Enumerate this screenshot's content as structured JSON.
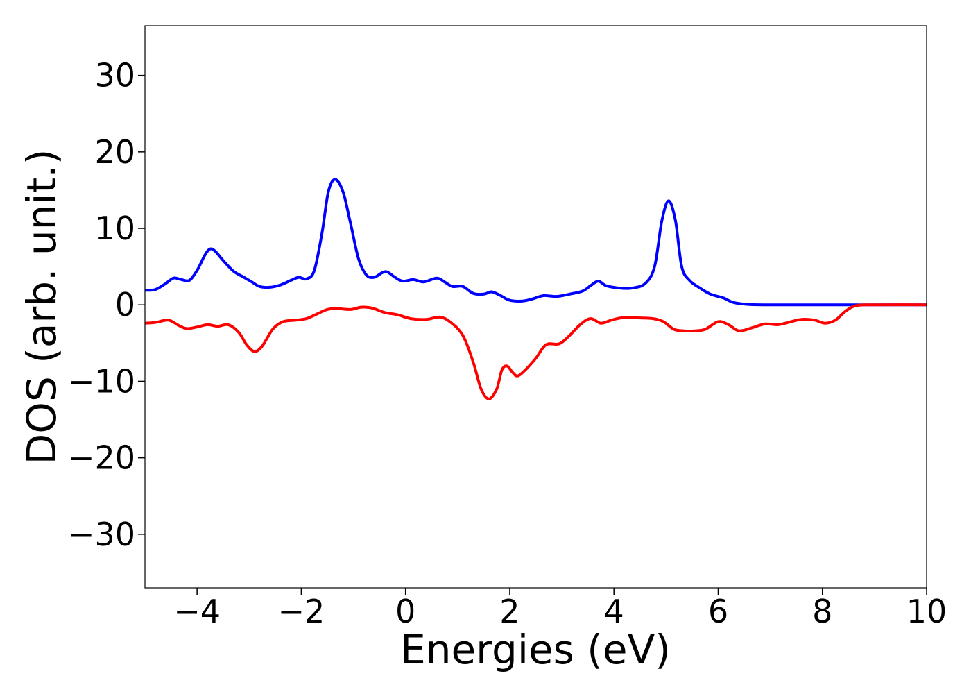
{
  "chart_data": {
    "type": "line",
    "title": "",
    "xlabel": "Energies (eV)",
    "ylabel": "DOS (arb. unit.)",
    "xlim": [
      -5,
      10
    ],
    "ylim": [
      -37,
      36.5
    ],
    "grid": false,
    "legend": "none",
    "xticks": [
      {
        "value": -4,
        "label": "−4"
      },
      {
        "value": -2,
        "label": "−2"
      },
      {
        "value": 0,
        "label": "0"
      },
      {
        "value": 2,
        "label": "2"
      },
      {
        "value": 4,
        "label": "4"
      },
      {
        "value": 6,
        "label": "6"
      },
      {
        "value": 8,
        "label": "8"
      },
      {
        "value": 10,
        "label": "10"
      }
    ],
    "yticks": [
      {
        "value": -30,
        "label": "−30"
      },
      {
        "value": -20,
        "label": "−20"
      },
      {
        "value": -10,
        "label": "−10"
      },
      {
        "value": 0,
        "label": "0"
      },
      {
        "value": 10,
        "label": "10"
      },
      {
        "value": 20,
        "label": "20"
      },
      {
        "value": 30,
        "label": "30"
      }
    ],
    "series": [
      {
        "color": "#0000ff",
        "points": [
          [
            -5.0,
            1.9
          ],
          [
            -4.8,
            2.0
          ],
          [
            -4.6,
            2.8
          ],
          [
            -4.45,
            3.5
          ],
          [
            -4.3,
            3.3
          ],
          [
            -4.15,
            3.2
          ],
          [
            -4.0,
            4.5
          ],
          [
            -3.85,
            6.5
          ],
          [
            -3.75,
            7.3
          ],
          [
            -3.65,
            7.0
          ],
          [
            -3.5,
            5.8
          ],
          [
            -3.3,
            4.4
          ],
          [
            -3.1,
            3.6
          ],
          [
            -2.95,
            3.0
          ],
          [
            -2.8,
            2.4
          ],
          [
            -2.6,
            2.3
          ],
          [
            -2.4,
            2.6
          ],
          [
            -2.2,
            3.2
          ],
          [
            -2.05,
            3.6
          ],
          [
            -1.9,
            3.4
          ],
          [
            -1.75,
            4.5
          ],
          [
            -1.6,
            9.5
          ],
          [
            -1.48,
            14.8
          ],
          [
            -1.35,
            16.4
          ],
          [
            -1.2,
            14.8
          ],
          [
            -1.05,
            10.5
          ],
          [
            -0.9,
            6.0
          ],
          [
            -0.75,
            3.9
          ],
          [
            -0.6,
            3.6
          ],
          [
            -0.45,
            4.2
          ],
          [
            -0.35,
            4.3
          ],
          [
            -0.2,
            3.6
          ],
          [
            -0.05,
            3.1
          ],
          [
            0.15,
            3.3
          ],
          [
            0.35,
            3.0
          ],
          [
            0.6,
            3.5
          ],
          [
            0.75,
            3.0
          ],
          [
            0.9,
            2.4
          ],
          [
            1.1,
            2.4
          ],
          [
            1.3,
            1.5
          ],
          [
            1.5,
            1.4
          ],
          [
            1.65,
            1.7
          ],
          [
            1.8,
            1.3
          ],
          [
            2.0,
            0.6
          ],
          [
            2.25,
            0.5
          ],
          [
            2.45,
            0.8
          ],
          [
            2.65,
            1.2
          ],
          [
            2.9,
            1.1
          ],
          [
            3.15,
            1.4
          ],
          [
            3.4,
            1.8
          ],
          [
            3.55,
            2.5
          ],
          [
            3.7,
            3.1
          ],
          [
            3.85,
            2.5
          ],
          [
            4.1,
            2.2
          ],
          [
            4.35,
            2.2
          ],
          [
            4.6,
            2.8
          ],
          [
            4.78,
            5.0
          ],
          [
            4.92,
            11.0
          ],
          [
            5.05,
            13.6
          ],
          [
            5.18,
            11.0
          ],
          [
            5.3,
            5.0
          ],
          [
            5.45,
            3.2
          ],
          [
            5.65,
            2.2
          ],
          [
            5.85,
            1.4
          ],
          [
            6.1,
            0.9
          ],
          [
            6.3,
            0.3
          ],
          [
            6.6,
            0.05
          ],
          [
            7.0,
            0.0
          ],
          [
            8.0,
            0.0
          ],
          [
            9.0,
            0.0
          ],
          [
            10.0,
            0.0
          ]
        ]
      },
      {
        "color": "#ff0000",
        "points": [
          [
            -5.0,
            -2.4
          ],
          [
            -4.8,
            -2.3
          ],
          [
            -4.55,
            -2.0
          ],
          [
            -4.35,
            -2.7
          ],
          [
            -4.2,
            -3.1
          ],
          [
            -4.0,
            -2.9
          ],
          [
            -3.8,
            -2.6
          ],
          [
            -3.6,
            -2.8
          ],
          [
            -3.4,
            -2.6
          ],
          [
            -3.2,
            -3.6
          ],
          [
            -3.05,
            -5.2
          ],
          [
            -2.9,
            -6.1
          ],
          [
            -2.75,
            -5.4
          ],
          [
            -2.55,
            -3.2
          ],
          [
            -2.35,
            -2.2
          ],
          [
            -2.1,
            -2.0
          ],
          [
            -1.9,
            -1.8
          ],
          [
            -1.7,
            -1.2
          ],
          [
            -1.5,
            -0.6
          ],
          [
            -1.3,
            -0.5
          ],
          [
            -1.05,
            -0.6
          ],
          [
            -0.85,
            -0.3
          ],
          [
            -0.65,
            -0.4
          ],
          [
            -0.4,
            -1.0
          ],
          [
            -0.15,
            -1.3
          ],
          [
            0.1,
            -1.8
          ],
          [
            0.4,
            -1.9
          ],
          [
            0.65,
            -1.6
          ],
          [
            0.85,
            -2.2
          ],
          [
            1.1,
            -4.0
          ],
          [
            1.3,
            -7.5
          ],
          [
            1.45,
            -11.0
          ],
          [
            1.6,
            -12.3
          ],
          [
            1.75,
            -11.0
          ],
          [
            1.85,
            -8.5
          ],
          [
            1.95,
            -8.0
          ],
          [
            2.05,
            -8.8
          ],
          [
            2.15,
            -9.3
          ],
          [
            2.3,
            -8.5
          ],
          [
            2.5,
            -7.0
          ],
          [
            2.7,
            -5.2
          ],
          [
            2.95,
            -5.1
          ],
          [
            3.15,
            -4.0
          ],
          [
            3.35,
            -2.6
          ],
          [
            3.55,
            -1.8
          ],
          [
            3.75,
            -2.4
          ],
          [
            3.95,
            -2.0
          ],
          [
            4.15,
            -1.7
          ],
          [
            4.45,
            -1.7
          ],
          [
            4.75,
            -1.8
          ],
          [
            4.95,
            -2.2
          ],
          [
            5.15,
            -3.2
          ],
          [
            5.35,
            -3.4
          ],
          [
            5.55,
            -3.4
          ],
          [
            5.75,
            -3.2
          ],
          [
            6.0,
            -2.2
          ],
          [
            6.2,
            -2.6
          ],
          [
            6.4,
            -3.4
          ],
          [
            6.65,
            -3.0
          ],
          [
            6.9,
            -2.5
          ],
          [
            7.15,
            -2.6
          ],
          [
            7.4,
            -2.2
          ],
          [
            7.6,
            -1.9
          ],
          [
            7.85,
            -2.0
          ],
          [
            8.05,
            -2.4
          ],
          [
            8.25,
            -2.0
          ],
          [
            8.45,
            -0.8
          ],
          [
            8.65,
            -0.1
          ],
          [
            9.0,
            0.0
          ],
          [
            10.0,
            0.0
          ]
        ]
      }
    ]
  }
}
